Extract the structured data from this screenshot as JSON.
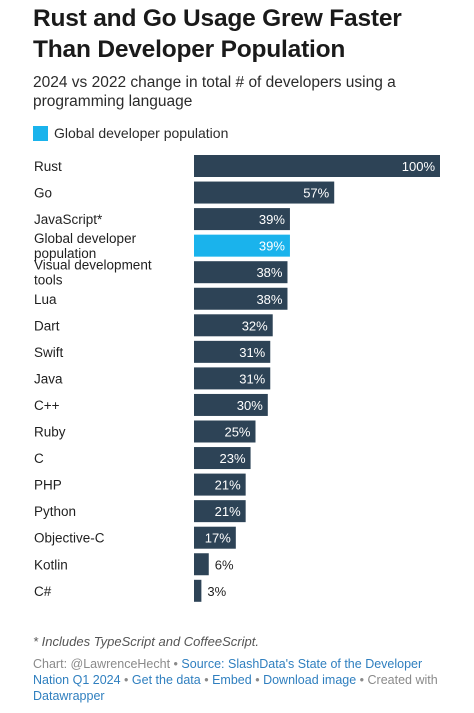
{
  "header": {
    "title": "Rust and Go Usage Grew Faster Than Developer Population",
    "subtitle": "2024 vs 2022 change in total # of developers using a programming language"
  },
  "legend": {
    "label": "Global developer population",
    "color": "#1ab3ec"
  },
  "colors": {
    "bar": "#2d4356",
    "highlight": "#1ab3ec"
  },
  "chart_data": {
    "type": "bar",
    "orientation": "horizontal",
    "title": "Rust and Go Usage Grew Faster Than Developer Population",
    "subtitle": "2024 vs 2022 change in total # of developers using a programming language",
    "categories": [
      "Rust",
      "Go",
      "JavaScript*",
      "Global developer population",
      "Visual development tools",
      "Lua",
      "Dart",
      "Swift",
      "Java",
      "C++",
      "Ruby",
      "C",
      "PHP",
      "Python",
      "Objective-C",
      "Kotlin",
      "C#"
    ],
    "values": [
      100,
      57,
      39,
      39,
      38,
      38,
      32,
      31,
      31,
      30,
      25,
      23,
      21,
      21,
      17,
      6,
      3
    ],
    "value_labels": [
      "100%",
      "57%",
      "39%",
      "39%",
      "38%",
      "38%",
      "32%",
      "31%",
      "31%",
      "30%",
      "25%",
      "23%",
      "21%",
      "21%",
      "17%",
      "6%",
      "3%"
    ],
    "highlight_category": "Global developer population",
    "xlim": [
      0,
      100
    ],
    "grid": false,
    "legend_position": "top-left"
  },
  "note": "* Includes TypeScript and CoffeeScript.",
  "footer": {
    "chart_credit": "Chart: @LawrenceHecht",
    "source_prefix": "Source:",
    "source_link": "SlashData's State of the Developer Nation Q1 2024",
    "get_data": "Get the data",
    "embed": "Embed",
    "download": "Download image",
    "created_with": "Created with",
    "datawrapper": "Datawrapper",
    "separator": "•"
  }
}
